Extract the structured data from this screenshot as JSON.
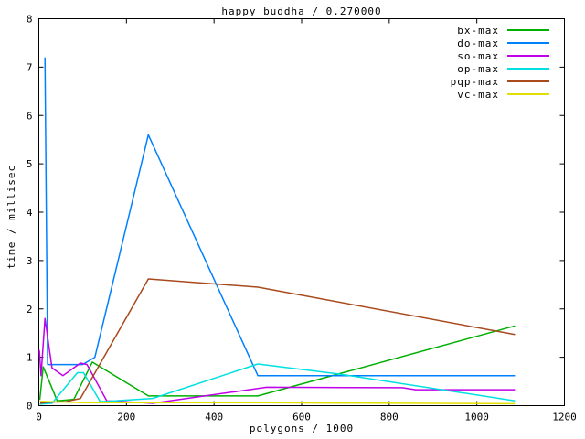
{
  "chart_data": {
    "type": "line",
    "title": "happy buddha / 0.270000",
    "xlabel": "polygons / 1000",
    "ylabel": "time / millisec",
    "xlim": [
      0,
      1200
    ],
    "ylim": [
      0,
      8
    ],
    "x_ticks": [
      0,
      200,
      400,
      600,
      800,
      1000,
      1200
    ],
    "y_ticks": [
      0,
      1,
      2,
      3,
      4,
      5,
      6,
      7,
      8
    ],
    "grid": false,
    "legend_position": "top-right-inside",
    "background_color": "#ffffff",
    "axis_color": "#000000",
    "series": [
      {
        "name": "bx-max",
        "color": "#00b000",
        "points": [
          [
            2,
            0.12
          ],
          [
            10,
            0.8
          ],
          [
            42,
            0.1
          ],
          [
            80,
            0.13
          ],
          [
            122,
            0.9
          ],
          [
            250,
            0.2
          ],
          [
            500,
            0.2
          ],
          [
            1087,
            1.65
          ]
        ]
      },
      {
        "name": "do-max",
        "color": "#0080ff",
        "points": [
          [
            14,
            7.2
          ],
          [
            20,
            0.85
          ],
          [
            100,
            0.85
          ],
          [
            128,
            1.0
          ],
          [
            250,
            5.6
          ],
          [
            500,
            0.62
          ],
          [
            1087,
            0.62
          ]
        ]
      },
      {
        "name": "so-max",
        "color": "#c000e8",
        "points": [
          [
            1,
            1.15
          ],
          [
            5,
            0.62
          ],
          [
            14,
            1.8
          ],
          [
            30,
            0.78
          ],
          [
            55,
            0.62
          ],
          [
            95,
            0.88
          ],
          [
            110,
            0.85
          ],
          [
            155,
            0.1
          ],
          [
            260,
            0.05
          ],
          [
            520,
            0.38
          ],
          [
            830,
            0.37
          ],
          [
            860,
            0.33
          ],
          [
            1087,
            0.33
          ]
        ]
      },
      {
        "name": "op-max",
        "color": "#00e0e0",
        "points": [
          [
            2,
            0.03
          ],
          [
            30,
            0.05
          ],
          [
            88,
            0.68
          ],
          [
            102,
            0.68
          ],
          [
            140,
            0.08
          ],
          [
            260,
            0.15
          ],
          [
            500,
            0.86
          ],
          [
            680,
            0.66
          ],
          [
            1087,
            0.1
          ]
        ]
      },
      {
        "name": "pqp-max",
        "color": "#a84a1e",
        "points": [
          [
            3,
            0.05
          ],
          [
            20,
            0.07
          ],
          [
            60,
            0.08
          ],
          [
            95,
            0.15
          ],
          [
            250,
            2.62
          ],
          [
            500,
            2.45
          ],
          [
            1087,
            1.47
          ]
        ]
      },
      {
        "name": "vc-max",
        "color": "#e0e000",
        "points": [
          [
            2,
            0.09
          ],
          [
            100,
            0.06
          ],
          [
            500,
            0.06
          ],
          [
            1087,
            0.04
          ]
        ]
      }
    ]
  }
}
